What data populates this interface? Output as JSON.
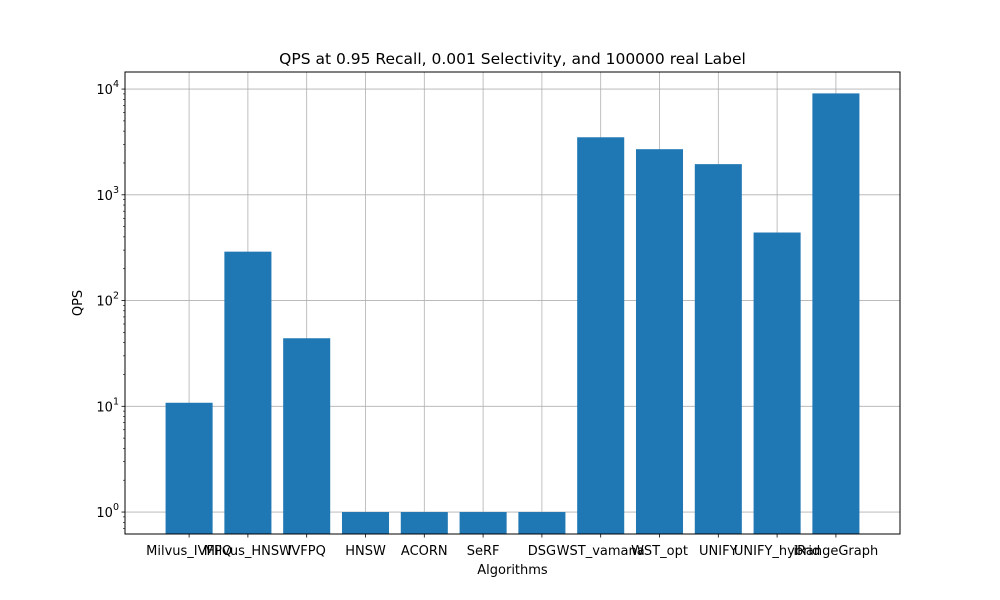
{
  "chart_data": {
    "type": "bar",
    "title": "QPS at 0.95 Recall, 0.001 Selectivity, and 100000 real Label",
    "xlabel": "Algorithms",
    "ylabel": "QPS",
    "yscale": "log",
    "ylim": [
      0.62,
      14500
    ],
    "yticks": [
      {
        "value": 1,
        "base": "10",
        "exp": "0"
      },
      {
        "value": 10,
        "base": "10",
        "exp": "1"
      },
      {
        "value": 100,
        "base": "10",
        "exp": "2"
      },
      {
        "value": 1000,
        "base": "10",
        "exp": "3"
      },
      {
        "value": 10000,
        "base": "10",
        "exp": "4"
      }
    ],
    "grid": true,
    "bar_color": "#1f77b4",
    "categories": [
      "Milvus_IVFPQ",
      "Milvus_HNSW",
      "IVFPQ",
      "HNSW",
      "ACORN",
      "SeRF",
      "DSG",
      "WST_vamana",
      "WST_opt",
      "UNIFY",
      "UNIFY_hybrid",
      "iRangeGraph"
    ],
    "values": [
      10.8,
      290,
      44,
      1,
      1,
      1,
      1,
      3500,
      2700,
      1950,
      440,
      9100
    ]
  }
}
